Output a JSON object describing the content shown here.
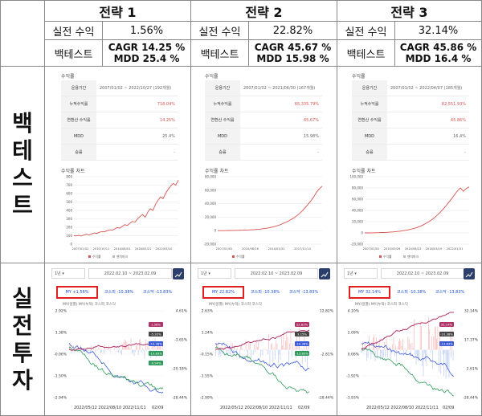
{
  "header": {
    "strategies": [
      "전략 1",
      "전략 2",
      "전략 3"
    ]
  },
  "row_live": {
    "label": "실전 수익",
    "values": [
      "1.56%",
      "22.82%",
      "32.14%"
    ]
  },
  "row_backtest": {
    "label": "백테스트",
    "values": [
      [
        "CAGR 14.25 %",
        "MDD 25.4 %"
      ],
      [
        "CAGR 45.67 %",
        "MDD 15.98 %"
      ],
      [
        "CAGR 45.86 %",
        "MDD 16.4 %"
      ]
    ]
  },
  "side_labels": {
    "backtest": [
      "백",
      "테",
      "스",
      "트"
    ],
    "live": [
      "실",
      "전",
      "투",
      "자"
    ]
  },
  "backtest_panels": [
    {
      "title": "수익률",
      "rows": [
        {
          "k": "운용기간",
          "v": "2007/01/02 ~ 2022/10/27 (192개월)"
        },
        {
          "k": "누적수익률",
          "v": "718.04%"
        },
        {
          "k": "연환산 수익률",
          "v": "14.25%"
        },
        {
          "k": "MDD",
          "v": "25.4%"
        },
        {
          "k": "승률",
          "v": "-"
        }
      ],
      "chart_title": "수익률 차트",
      "y_ticks": [
        "800",
        "700",
        "600",
        "500",
        "400",
        "300",
        "200",
        "100",
        "0"
      ],
      "x_ticks": [
        "2007/01/02",
        "2010/10/11",
        "2014/08/01",
        "2018/05/21",
        "2022/03/10"
      ],
      "legend": [
        "수익률",
        "벤치마크"
      ],
      "series": [
        100,
        98,
        104,
        96,
        110,
        118,
        108,
        122,
        132,
        128,
        140,
        150,
        146,
        160,
        170,
        165,
        180,
        196,
        190,
        210,
        230,
        222,
        250,
        270,
        262,
        300,
        330,
        350,
        320,
        380,
        420,
        400,
        470,
        520,
        560,
        540,
        600,
        650,
        690,
        720,
        700,
        760
      ]
    },
    {
      "title": "수익률",
      "rows": [
        {
          "k": "운용기간",
          "v": "2007/01/02 ~ 2021/06/30 (167개월)"
        },
        {
          "k": "누적수익률",
          "v": "65,335.79%"
        },
        {
          "k": "연환산 수익률",
          "v": "45.67%"
        },
        {
          "k": "MDD",
          "v": "15.98%"
        },
        {
          "k": "승률",
          "v": "-"
        }
      ],
      "chart_title": "수익률 차트",
      "y_ticks": [
        "80,000",
        "60,000",
        "40,000",
        "20,000",
        "0",
        "-20,000"
      ],
      "x_ticks": [
        "2007/01/02",
        "2010/08/16",
        "2014/03/31",
        "2017/11/13"
      ],
      "legend": [
        "수익률"
      ],
      "series": [
        0,
        0,
        0,
        100,
        200,
        300,
        400,
        500,
        600,
        700,
        900,
        1100,
        1300,
        1600,
        1900,
        2300,
        2800,
        3400,
        4100,
        5000,
        6000,
        7200,
        8600,
        10200,
        12000,
        14000,
        16500,
        19000,
        22000,
        25500,
        29500,
        34000,
        39000,
        44000,
        50000,
        57000,
        62000,
        66000
      ]
    },
    {
      "title": "수익률",
      "rows": [
        {
          "k": "운용기간",
          "v": "2007/01/02 ~ 2022/04/07 (185개월)"
        },
        {
          "k": "누적수익률",
          "v": "82,551.93%"
        },
        {
          "k": "연환산 수익률",
          "v": "45.86%"
        },
        {
          "k": "MDD",
          "v": "16.4%"
        },
        {
          "k": "승률",
          "v": "-"
        }
      ],
      "chart_title": "수익률 차트",
      "y_ticks": [
        "100,000",
        "80,000",
        "60,000",
        "40,000",
        "20,000",
        "0",
        "-20,000"
      ],
      "x_ticks": [
        "2007/01/02",
        "2010/09/28",
        "2014/06/23",
        "2018/03/19",
        "2022/01/31"
      ],
      "legend": [
        "수익률",
        "벤치마크"
      ],
      "series": [
        0,
        0,
        100,
        200,
        300,
        500,
        700,
        900,
        1200,
        1500,
        1900,
        2400,
        3000,
        3700,
        4500,
        5500,
        6700,
        8000,
        9600,
        11500,
        13800,
        16500,
        19500,
        23000,
        27000,
        31500,
        36500,
        42000,
        48000,
        54500,
        61000,
        68000,
        75000,
        80000,
        74000,
        79000,
        82000
      ]
    }
  ],
  "live_panels": [
    {
      "period_select": "1년",
      "date_range": "2022.02.10 ~ 2023.02.09",
      "my": "MY +1.56%",
      "kospi": "코스피 -10.38%",
      "kosdaq": "코스닥 -13.83%",
      "legend": "MY(일별) MY(누적) 코스피 코스닥",
      "left_ticks": [
        "2.92%",
        "1.38%",
        "-0.06%",
        "-1.50%",
        "-2.94%"
      ],
      "right_ticks": [
        "4.61%",
        "-3.65%",
        "-20.18%",
        "-28.44%"
      ],
      "tags": [
        "1.56%",
        "-5.32%",
        "-10.38%",
        "-13.83%",
        "-0.94%"
      ],
      "x_labels": "2022/05/12 2022/08/10 2022/11/11",
      "x_end": "02/09"
    },
    {
      "period_select": "1년",
      "date_range": "2022.02.10 ~ 2023.02.09",
      "my": "MY 22.82%",
      "kospi": "코스피 -10.38%",
      "kosdaq": "코스닥 -13.83%",
      "legend": "MY(일별) MY(누적) 코스피 코스닥",
      "left_ticks": [
        "2.63%",
        "1.24%",
        "-0.15%",
        "-1.55%",
        "-2.99%"
      ],
      "right_ticks": [
        "12.82%",
        "-2.81%",
        "-28.44%"
      ],
      "tags": [
        "22.82%",
        "3.15%",
        "-10.38%",
        "-13.83%"
      ],
      "x_labels": "2022/05/12 2022/08/10 2022/11/11",
      "x_end": "02/09"
    },
    {
      "period_select": "1년",
      "date_range": "2022.02.10 ~ 2023.02.09",
      "my": "MY 32.14%",
      "kospi": "코스피 -10.38%",
      "kosdaq": "코스닥 -13.83%",
      "legend": "MY(일별) MY(누적) 코스피 코스닥",
      "left_ticks": [
        "4.10%",
        "2.09%",
        "0.08%",
        "-1.92%",
        "-3.93%"
      ],
      "right_ticks": [
        "32.14%",
        "17.37%",
        "2.61%",
        "-28.44%"
      ],
      "tags": [
        "32.14%",
        "-10.38%",
        "-13.83%"
      ],
      "x_labels": "2022/05/12 2022/08/10 2022/11/11",
      "x_end": "02/09"
    }
  ],
  "colors": {
    "grid_line": "#888888",
    "red": "#e02020",
    "blue": "#1a4fd6",
    "kospi": "#3b5bd9",
    "kosdaq": "#2e9b5a",
    "my_cum": "#b0336a",
    "backtest_line": "#d9534f"
  }
}
